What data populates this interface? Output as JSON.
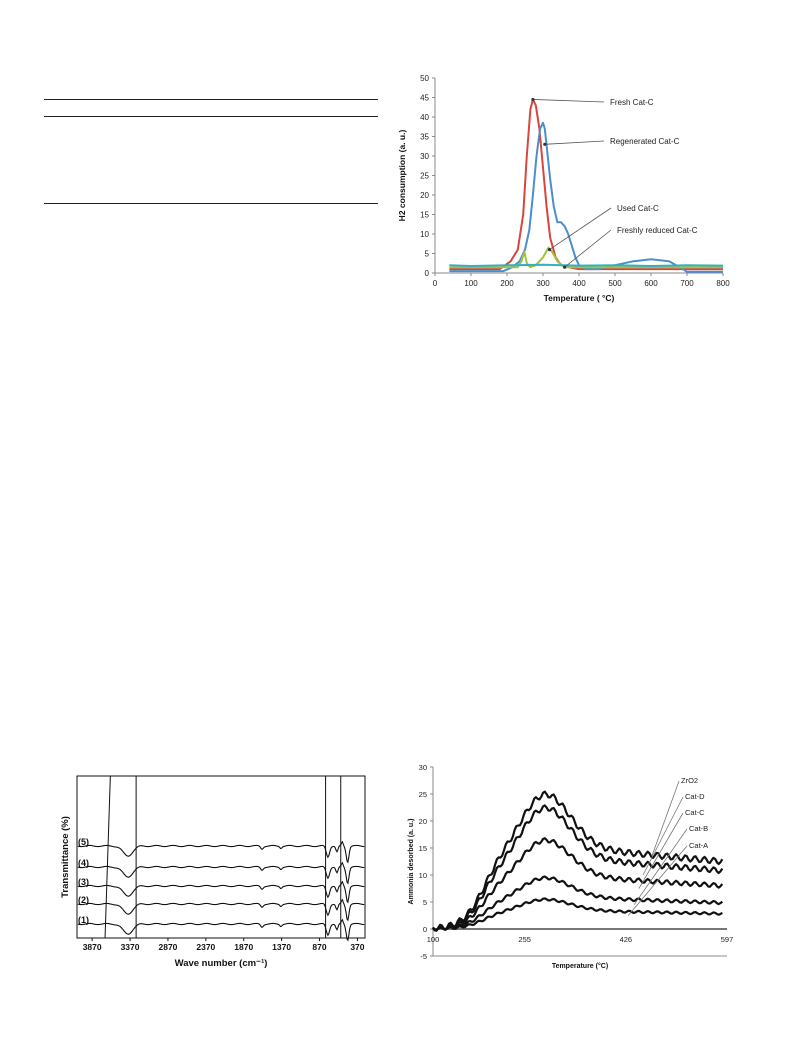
{
  "page": {
    "title": ""
  },
  "table_rules": [
    "top",
    "header",
    "bottom"
  ],
  "chart_data": [
    {
      "type": "line",
      "title": "",
      "xlabel": "Temperature ( °C)",
      "ylabel": "H2 consumption (a. u.)",
      "xlim": [
        0,
        800
      ],
      "ylim": [
        0,
        50
      ],
      "xticks": [
        0,
        100,
        200,
        300,
        400,
        500,
        600,
        700,
        800
      ],
      "yticks": [
        0,
        5,
        10,
        15,
        20,
        25,
        30,
        35,
        40,
        45,
        50
      ],
      "grid": false,
      "legend": "annotations",
      "series": [
        {
          "name": "Fresh Cat-C",
          "color": "#d9453c",
          "x": [
            40,
            180,
            210,
            230,
            245,
            255,
            265,
            272,
            280,
            290,
            300,
            310,
            320,
            335,
            350,
            370,
            400,
            500,
            600,
            800
          ],
          "y": [
            1,
            1,
            3,
            6,
            15,
            30,
            42,
            44.5,
            43,
            37,
            27,
            17,
            9,
            4,
            2,
            1.5,
            1,
            1,
            1,
            1
          ]
        },
        {
          "name": "Regenerated Cat-C",
          "color": "#4b8ed0",
          "x": [
            40,
            190,
            215,
            235,
            250,
            262,
            272,
            282,
            292,
            300,
            305,
            312,
            320,
            330,
            340,
            350,
            360,
            370,
            380,
            390,
            400,
            420,
            450,
            500,
            550,
            600,
            650,
            680,
            700,
            750,
            800
          ],
          "y": [
            0.5,
            0.5,
            1.5,
            3,
            6,
            11,
            20,
            30,
            37,
            38.5,
            37,
            31,
            24,
            17,
            13,
            13,
            12,
            10,
            7,
            4,
            2,
            1,
            1,
            2,
            3,
            3.5,
            3,
            1.5,
            0.3,
            0.3,
            0.3
          ]
        },
        {
          "name": "Used Cat-C",
          "color": "#9bc53d",
          "x": [
            40,
            230,
            240,
            248,
            255,
            265,
            280,
            300,
            315,
            325,
            340,
            360,
            400,
            800
          ],
          "y": [
            1.5,
            1.5,
            3,
            5.5,
            2.5,
            1.5,
            2,
            4,
            6.5,
            5.5,
            3,
            1.5,
            1.5,
            1.5
          ]
        },
        {
          "name": "Freshly reduced Cat-C",
          "color": "#35b0bf",
          "x": [
            40,
            100,
            200,
            300,
            400,
            500,
            600,
            700,
            800
          ],
          "y": [
            2,
            1.8,
            2,
            2.1,
            1.9,
            2,
            1.8,
            2,
            1.9
          ]
        }
      ],
      "annotations": [
        "Fresh Cat-C",
        "Regenerated Cat-C",
        "Used Cat-C",
        "Freshly reduced Cat-C"
      ]
    },
    {
      "type": "line",
      "title": "",
      "xlabel": "Wave number (cm⁻¹)",
      "ylabel": "Transmittance (%)",
      "xlim": [
        4070,
        270
      ],
      "xticks": [
        3870,
        3370,
        2870,
        2370,
        1870,
        1370,
        870,
        370
      ],
      "grid": false,
      "series_labels": [
        "(5)",
        "(4)",
        "(3)",
        "(2)",
        "(1)"
      ],
      "offsets": [
        92,
        71,
        52,
        34,
        14
      ],
      "line_color": "#111111"
    },
    {
      "type": "line",
      "title": "",
      "xlabel": "Temperature (°C)",
      "ylabel": "Ammonia desorbed (a. u.)",
      "xlim": [
        100,
        597
      ],
      "ylim": [
        -5,
        30
      ],
      "xticks": [
        100,
        255,
        426,
        597
      ],
      "yticks": [
        -5,
        0,
        5,
        10,
        15,
        20,
        25,
        30
      ],
      "grid": false,
      "legend": "annotations",
      "series": [
        {
          "name": "ZrO2",
          "peak": 25,
          "plateau": 15.5,
          "end": 12.5
        },
        {
          "name": "Cat-D",
          "peak": 22.5,
          "plateau": 13.5,
          "end": 10
        },
        {
          "name": "Cat-C",
          "peak": 16.5,
          "plateau": 10,
          "end": 7.5
        },
        {
          "name": "Cat-B",
          "peak": 9.5,
          "plateau": 6,
          "end": 4.5
        },
        {
          "name": "Cat-A",
          "peak": 5.5,
          "plateau": 3.5,
          "end": 2.5
        }
      ]
    }
  ]
}
